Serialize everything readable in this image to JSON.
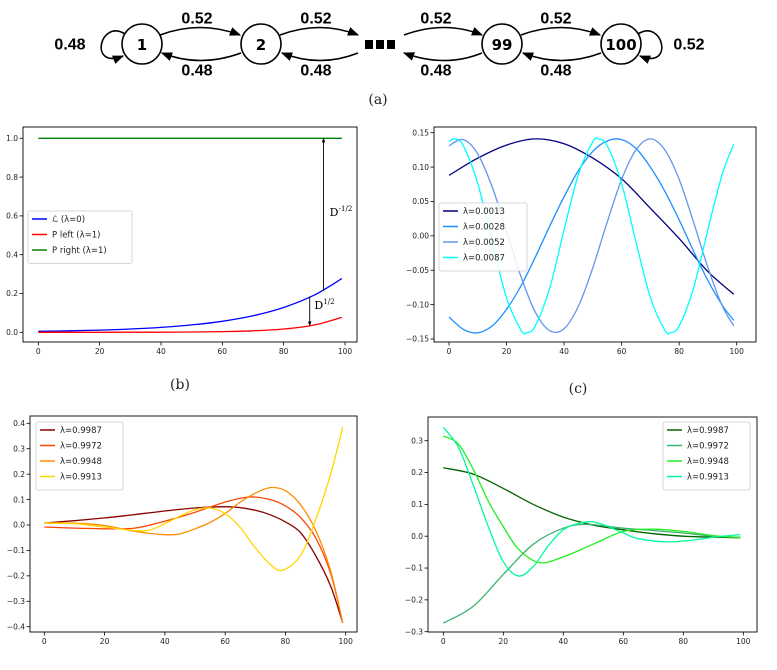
{
  "diagram": {
    "nodes": [
      "1",
      "2",
      "99",
      "100"
    ],
    "forward_prob": "0.52",
    "backward_prob": "0.48",
    "self_loop_first": "0.48",
    "self_loop_last": "0.52",
    "caption": "(a)"
  },
  "captions": {
    "b": "(b)",
    "c": "(c)"
  },
  "chart_data": [
    {
      "id": "b",
      "type": "line",
      "xlim": [
        -7,
        104
      ],
      "ylim": [
        -0.03,
        1.03
      ],
      "xticks": [
        "0",
        "20",
        "40",
        "60",
        "80",
        "100"
      ],
      "yticks": [
        "0.0",
        "0.2",
        "0.4",
        "0.6",
        "0.8",
        "1.0"
      ],
      "legend": "center-left",
      "grid": false,
      "series": [
        {
          "name": "ℒ (λ=0)",
          "color": "#0000ff",
          "x": [
            0,
            10,
            20,
            30,
            40,
            50,
            60,
            70,
            80,
            90,
            99
          ],
          "y": [
            0.005,
            0.0075,
            0.0112,
            0.0168,
            0.0253,
            0.0379,
            0.0568,
            0.0852,
            0.128,
            0.192,
            0.277
          ]
        },
        {
          "name": "P left (λ=1)",
          "color": "#ff0000",
          "x": [
            0,
            10,
            20,
            30,
            40,
            50,
            60,
            70,
            80,
            90,
            99
          ],
          "y": [
            0,
            0,
            0.0001,
            0.0003,
            0.0007,
            0.0015,
            0.0034,
            0.0075,
            0.0168,
            0.0375,
            0.077
          ]
        },
        {
          "name": "P right (λ=1)",
          "color": "#008000",
          "x": [
            0,
            99
          ],
          "y": [
            1.0,
            1.0
          ]
        }
      ],
      "annotations": [
        {
          "base": "D",
          "sup": "-1/2",
          "arrow_x": 93,
          "from_y": 0.215,
          "to_y": 1.0,
          "label_x": 95,
          "label_y": 0.6
        },
        {
          "base": "D",
          "sup": "1/2",
          "arrow_x": 88.5,
          "from_y": 0.185,
          "to_y": 0.035,
          "label_x": 90,
          "label_y": 0.12
        }
      ]
    },
    {
      "id": "c",
      "type": "line",
      "xlim": [
        -5,
        104
      ],
      "ylim": [
        -0.155,
        0.158
      ],
      "xticks": [
        "0",
        "20",
        "40",
        "60",
        "80",
        "100"
      ],
      "yticks": [
        "0.15",
        "0.10",
        "0.05",
        "0.00",
        "−0.05",
        "−0.10",
        "−0.15"
      ],
      "ytick_values": [
        0.15,
        0.1,
        0.05,
        0.0,
        -0.05,
        -0.1,
        -0.15
      ],
      "legend": "center-left",
      "grid": false,
      "series": [
        {
          "name": "λ=0.0013",
          "color": "#000080",
          "x": [
            0,
            10,
            20,
            30,
            40,
            50,
            60,
            70,
            80,
            90,
            99
          ],
          "y": [
            0.088,
            0.113,
            0.132,
            0.141,
            0.134,
            0.113,
            0.083,
            0.04,
            -0.004,
            -0.052,
            -0.085
          ]
        },
        {
          "name": "λ=0.0028",
          "color": "#1e90ff",
          "x": [
            0,
            5,
            10,
            15,
            20,
            25,
            30,
            35,
            40,
            45,
            50,
            55,
            60,
            65,
            70,
            75,
            80,
            85,
            90,
            95,
            99
          ],
          "y": [
            -0.118,
            -0.136,
            -0.141,
            -0.131,
            -0.107,
            -0.073,
            -0.031,
            0.014,
            0.057,
            0.095,
            0.123,
            0.138,
            0.14,
            0.127,
            0.1,
            0.065,
            0.023,
            -0.022,
            -0.065,
            -0.101,
            -0.123
          ]
        },
        {
          "name": "λ=0.0052",
          "color": "#6495ed",
          "x": [
            0,
            5,
            10,
            15,
            20,
            25,
            30,
            35,
            40,
            45,
            50,
            55,
            60,
            65,
            70,
            75,
            80,
            85,
            90,
            95,
            99
          ],
          "y": [
            0.131,
            0.14,
            0.119,
            0.071,
            0.007,
            -0.059,
            -0.111,
            -0.138,
            -0.135,
            -0.102,
            -0.046,
            0.02,
            0.082,
            0.125,
            0.141,
            0.125,
            0.082,
            0.02,
            -0.046,
            -0.102,
            -0.131
          ]
        },
        {
          "name": "λ=0.0087",
          "color": "#00ffff",
          "x": [
            0,
            2,
            5,
            10,
            15,
            20,
            25,
            27,
            30,
            35,
            40,
            45,
            50,
            52,
            55,
            60,
            65,
            70,
            75,
            77,
            80,
            85,
            90,
            95,
            99
          ],
          "y": [
            0.137,
            0.141,
            0.131,
            0.076,
            -0.009,
            -0.09,
            -0.137,
            -0.141,
            -0.131,
            -0.076,
            0.009,
            0.09,
            0.137,
            0.141,
            0.131,
            0.076,
            -0.009,
            -0.09,
            -0.137,
            -0.141,
            -0.131,
            -0.076,
            0.009,
            0.09,
            0.133
          ]
        }
      ]
    },
    {
      "id": "d",
      "type": "line",
      "xlim": [
        -5,
        104
      ],
      "ylim": [
        -0.42,
        0.42
      ],
      "xticks": [
        "0",
        "20",
        "40",
        "60",
        "80",
        "100"
      ],
      "yticks": [
        "0.4",
        "0.3",
        "0.2",
        "0.1",
        "0.0",
        "−0.1",
        "−0.2",
        "−0.3",
        "−0.4"
      ],
      "ytick_values": [
        0.4,
        0.3,
        0.2,
        0.1,
        0.0,
        -0.1,
        -0.2,
        -0.3,
        -0.4
      ],
      "legend": "upper-left",
      "grid": false,
      "series": [
        {
          "name": "λ=0.9987",
          "color": "#8b0000",
          "x": [
            0,
            10,
            20,
            30,
            40,
            50,
            60,
            65,
            70,
            75,
            80,
            85,
            90,
            95,
            99
          ],
          "y": [
            0.008,
            0.017,
            0.028,
            0.041,
            0.055,
            0.067,
            0.072,
            0.068,
            0.058,
            0.04,
            0.012,
            -0.03,
            -0.12,
            -0.24,
            -0.385
          ]
        },
        {
          "name": "λ=0.9972",
          "color": "#ff4500",
          "x": [
            0,
            10,
            20,
            30,
            40,
            50,
            60,
            68,
            75,
            80,
            85,
            90,
            95,
            99
          ],
          "y": [
            -0.008,
            -0.012,
            -0.015,
            -0.012,
            0.015,
            0.05,
            0.09,
            0.11,
            0.1,
            0.075,
            0.03,
            -0.05,
            -0.19,
            -0.385
          ]
        },
        {
          "name": "λ=0.9948",
          "color": "#ff8c00",
          "x": [
            0,
            10,
            20,
            30,
            40,
            45,
            50,
            55,
            60,
            65,
            70,
            75,
            80,
            85,
            90,
            95,
            99
          ],
          "y": [
            0.008,
            0.007,
            -0.002,
            -0.025,
            -0.038,
            -0.035,
            -0.015,
            0.01,
            0.045,
            0.09,
            0.125,
            0.147,
            0.135,
            0.08,
            -0.02,
            -0.18,
            -0.385
          ]
        },
        {
          "name": "λ=0.9913",
          "color": "#ffd700",
          "x": [
            0,
            10,
            20,
            30,
            35,
            40,
            45,
            50,
            55,
            60,
            65,
            70,
            75,
            79,
            85,
            90,
            95,
            99
          ],
          "y": [
            0.008,
            0.005,
            -0.008,
            -0.022,
            -0.02,
            0.005,
            0.035,
            0.06,
            0.067,
            0.045,
            -0.01,
            -0.09,
            -0.155,
            -0.178,
            -0.12,
            0.02,
            0.2,
            0.385
          ]
        }
      ]
    },
    {
      "id": "e",
      "type": "line",
      "xlim": [
        -5,
        104
      ],
      "ylim": [
        -0.3,
        0.36
      ],
      "xticks": [
        "0",
        "20",
        "40",
        "60",
        "80",
        "100"
      ],
      "yticks": [
        "0.3",
        "0.2",
        "0.1",
        "0.0",
        "−0.1",
        "−0.2",
        "−0.3"
      ],
      "ytick_values": [
        0.3,
        0.2,
        0.1,
        0.0,
        -0.1,
        -0.2,
        -0.3
      ],
      "legend": "upper-right",
      "grid": false,
      "series": [
        {
          "name": "λ=0.9987",
          "color": "#006400",
          "x": [
            0,
            10,
            20,
            30,
            40,
            50,
            60,
            70,
            80,
            90,
            99
          ],
          "y": [
            0.215,
            0.195,
            0.15,
            0.1,
            0.06,
            0.035,
            0.02,
            0.008,
            0.0,
            -0.003,
            -0.005
          ]
        },
        {
          "name": "λ=0.9972",
          "color": "#3cb371",
          "x": [
            0,
            10,
            20,
            30,
            40,
            48,
            60,
            70,
            80,
            90,
            99
          ],
          "y": [
            -0.273,
            -0.22,
            -0.12,
            -0.025,
            0.025,
            0.037,
            0.025,
            0.018,
            0.01,
            0.0,
            -0.003
          ]
        },
        {
          "name": "λ=0.9948",
          "color": "#22ee22",
          "x": [
            0,
            5,
            10,
            15,
            20,
            25,
            32,
            40,
            50,
            60,
            70,
            80,
            90,
            99
          ],
          "y": [
            0.315,
            0.29,
            0.21,
            0.11,
            0.03,
            -0.04,
            -0.083,
            -0.065,
            -0.025,
            0.015,
            0.022,
            0.015,
            0.002,
            -0.005
          ]
        },
        {
          "name": "λ=0.9913",
          "color": "#00fa9a",
          "x": [
            0,
            5,
            10,
            15,
            20,
            25,
            30,
            35,
            40,
            45,
            50,
            55,
            60,
            65,
            75,
            85,
            90,
            99
          ],
          "y": [
            0.342,
            0.28,
            0.16,
            0.03,
            -0.08,
            -0.125,
            -0.095,
            -0.03,
            0.02,
            0.04,
            0.045,
            0.03,
            0.01,
            -0.008,
            -0.018,
            -0.01,
            -0.003,
            0.005
          ]
        }
      ]
    }
  ]
}
